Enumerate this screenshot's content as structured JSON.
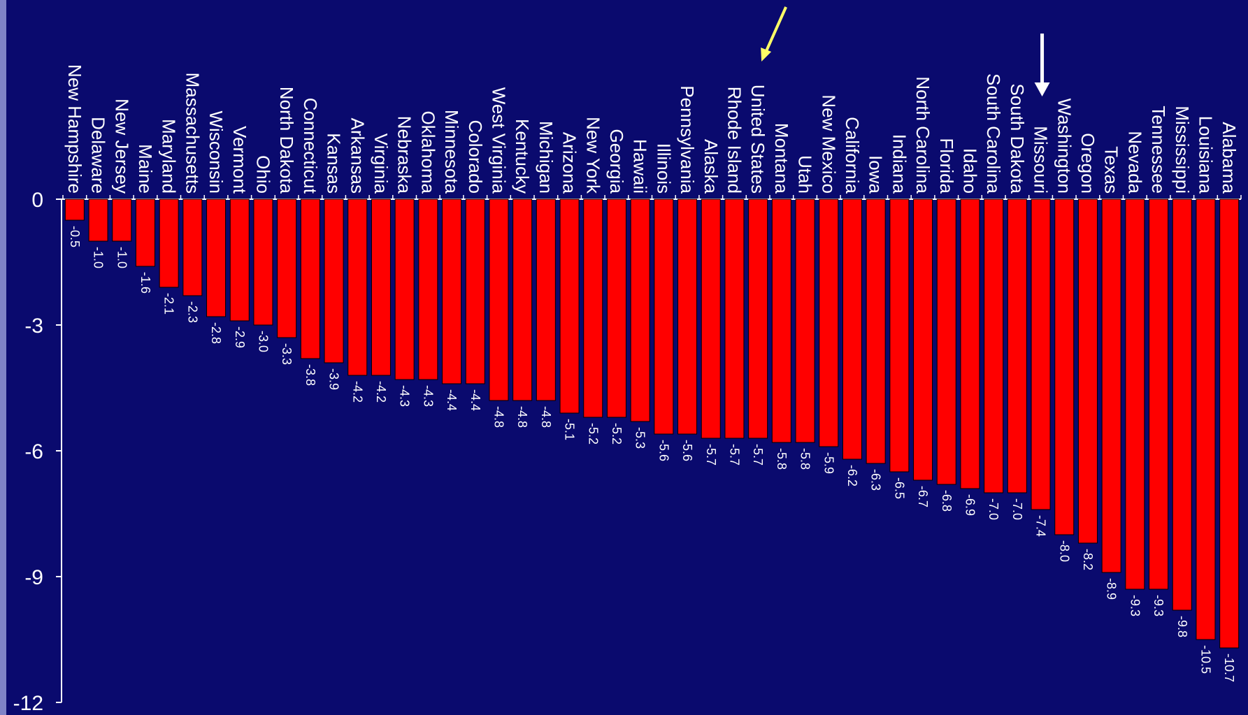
{
  "chart_data": {
    "type": "bar",
    "title": "",
    "xlabel": "",
    "ylabel": "",
    "ylim": [
      -12,
      0
    ],
    "yticks": [
      0,
      -3,
      -6,
      -9,
      -12
    ],
    "ytick_labels": [
      "0",
      "-3",
      "-6",
      "-9",
      "-12"
    ],
    "categories": [
      "New Hampshire",
      "Delaware",
      "New Jersey",
      "Maine",
      "Maryland",
      "Massachusetts",
      "Wisconsin",
      "Vermont",
      "Ohio",
      "North Dakota",
      "Connecticut",
      "Kansas",
      "Arkansas",
      "Virginia",
      "Nebraska",
      "Oklahoma",
      "Minnesota",
      "Colorado",
      "West Virginia",
      "Kentucky",
      "Michigan",
      "Arizona",
      "New York",
      "Georgia",
      "Hawaii",
      "Illinois",
      "Pennsylvania",
      "Alaska",
      "Rhode Island",
      "United States",
      "Montana",
      "Utah",
      "New Mexico",
      "California",
      "Iowa",
      "Indiana",
      "North Carolina",
      "Florida",
      "Idaho",
      "South Carolina",
      "South Dakota",
      "Missouri",
      "Washington",
      "Oregon",
      "Texas",
      "Nevada",
      "Tennessee",
      "Mississippi",
      "Louisiana",
      "Alabama"
    ],
    "values": [
      -0.5,
      -1.0,
      -1.0,
      -1.6,
      -2.1,
      -2.3,
      -2.8,
      -2.9,
      -3.0,
      -3.3,
      -3.8,
      -3.9,
      -4.2,
      -4.2,
      -4.3,
      -4.3,
      -4.4,
      -4.4,
      -4.8,
      -4.8,
      -4.8,
      -5.1,
      -5.2,
      -5.2,
      -5.3,
      -5.6,
      -5.6,
      -5.7,
      -5.7,
      -5.7,
      -5.8,
      -5.8,
      -5.9,
      -6.2,
      -6.3,
      -6.5,
      -6.7,
      -6.8,
      -6.9,
      -7.0,
      -7.0,
      -7.4,
      -8.0,
      -8.2,
      -8.9,
      -9.3,
      -9.3,
      -9.8,
      -10.5,
      -10.7
    ],
    "value_labels": [
      "-0.5",
      "-1.0",
      "-1.0",
      "-1.6",
      "-2.1",
      "-2.3",
      "-2.8",
      "-2.9",
      "-3.0",
      "-3.3",
      "-3.8",
      "-3.9",
      "-4.2",
      "-4.2",
      "-4.3",
      "-4.3",
      "-4.4",
      "-4.4",
      "-4.8",
      "-4.8",
      "-4.8",
      "-5.1",
      "-5.2",
      "-5.2",
      "-5.3",
      "-5.6",
      "-5.6",
      "-5.7",
      "-5.7",
      "-5.7",
      "-5.8",
      "-5.8",
      "-5.9",
      "-6.2",
      "-6.3",
      "-6.5",
      "-6.7",
      "-6.8",
      "-6.9",
      "-7.0",
      "-7.0",
      "-7.4",
      "-8.0",
      "-8.2",
      "-8.9",
      "-9.3",
      "-9.3",
      "-9.8",
      "-10.5",
      "-10.7"
    ],
    "bar_color": "#ff0000",
    "background_color": "#0a0a6e",
    "text_color": "#ffffff",
    "grid": false,
    "legend": "none",
    "annotations": [
      {
        "type": "arrow",
        "color": "#ffff66",
        "points_to": "United States"
      },
      {
        "type": "arrow",
        "color": "#ffffff",
        "points_to": "Missouri"
      }
    ]
  }
}
